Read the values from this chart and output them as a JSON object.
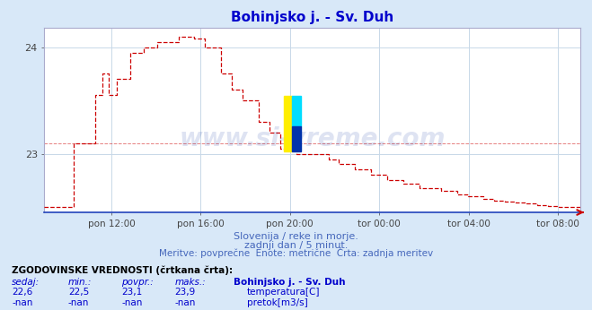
{
  "title": "Bohinjsko j. - Sv. Duh",
  "title_color": "#0000cc",
  "bg_color": "#d8e8f8",
  "plot_bg_color": "#ffffff",
  "grid_color": "#c8d8e8",
  "line_color": "#cc0000",
  "watermark": "www.si-vreme.com",
  "watermark_color": "#2244aa",
  "watermark_alpha": 0.15,
  "subtitle1": "Slovenija / reke in morje.",
  "subtitle2": "zadnji dan / 5 minut.",
  "subtitle3": "Meritve: povprečne  Enote: metrične  Črta: zadnja meritev",
  "subtitle_color": "#4466bb",
  "table_header": "ZGODOVINSKE VREDNOSTI (črtkana črta):",
  "table_cols": [
    "sedaj:",
    "min.:",
    "povpr.:",
    "maks.:",
    "Bohinjsko j. - Sv. Duh"
  ],
  "table_row1": [
    "22,6",
    "22,5",
    "23,1",
    "23,9",
    "temperatura[C]"
  ],
  "table_row2": [
    "-nan",
    "-nan",
    "-nan",
    "-nan",
    "pretok[m3/s]"
  ],
  "table_color": "#0000cc",
  "icon_temp_color": "#cc0000",
  "icon_flow_color": "#00aa00",
  "xticklabels": [
    "pon 12:00",
    "pon 16:00",
    "pon 20:00",
    "tor 00:00",
    "tor 04:00",
    "tor 08:00"
  ],
  "avg_line_y": 23.1,
  "ylim_min": 22.45,
  "ylim_max": 24.18,
  "xlim_min": 0.0,
  "xlim_max": 1.0
}
